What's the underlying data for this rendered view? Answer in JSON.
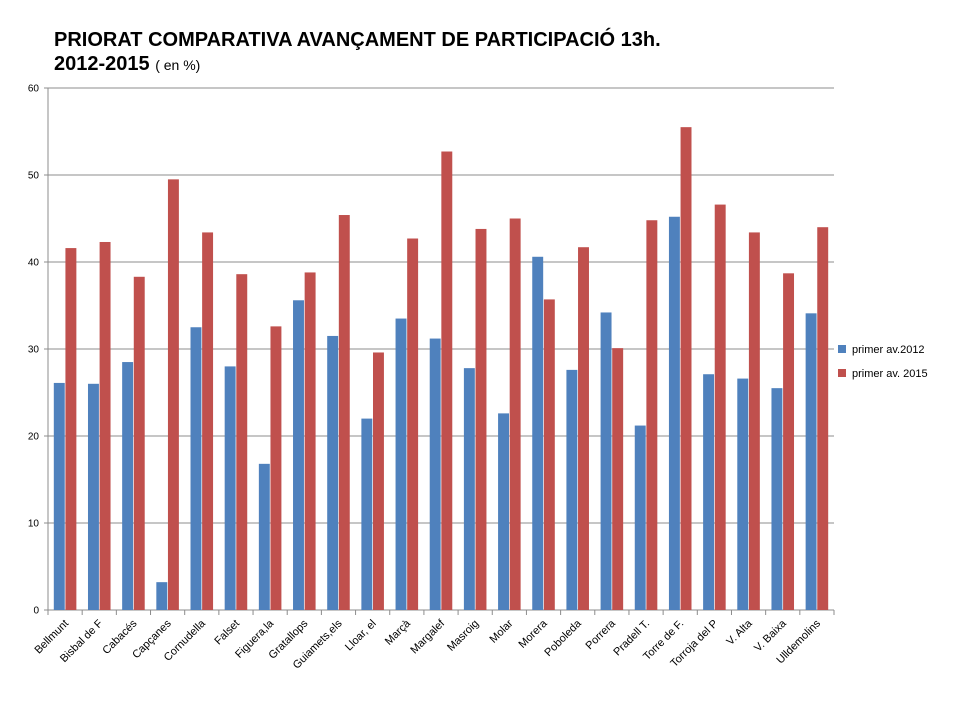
{
  "header": {
    "title_line1": "PRIORAT  COMPARATIVA AVANÇAMENT DE PARTICIPACIÓ 13h.",
    "title_line2": "2012-2015",
    "title_unit": "( en %)"
  },
  "chart_data": {
    "type": "bar",
    "title": "PRIORAT  COMPARATIVA AVANÇAMENT DE PARTICIPACIÓ 13h. 2012-2015 ( en %)",
    "xlabel": "",
    "ylabel": "",
    "ylim": [
      0,
      60
    ],
    "yticks": [
      0,
      10,
      20,
      30,
      40,
      50,
      60
    ],
    "grid": true,
    "legend_position": "right",
    "categories": [
      "Bellmunt",
      "Bisbal de F",
      "Cabacés",
      "Capçanes",
      "Cornudella",
      "Falset",
      "Figuera,la",
      "Gratallops",
      "Guiamets,els",
      "Lloar, el",
      "Marçà",
      "Margalef",
      "Masroig",
      "Molar",
      "Morera",
      "Poboleda",
      "Porrera",
      "Pradell T.",
      "Torre de F.",
      "Torroja del P",
      "V. Alta",
      "V. Baixa",
      "Ulldemolins"
    ],
    "series": [
      {
        "name": "primer av.2012",
        "color": "#4F81BD",
        "values": [
          26.1,
          26.0,
          28.5,
          3.2,
          32.5,
          28.0,
          16.8,
          35.6,
          31.5,
          22.0,
          33.5,
          31.2,
          27.8,
          22.6,
          40.6,
          27.6,
          34.2,
          21.2,
          45.2,
          27.1,
          26.6,
          25.5,
          34.1
        ]
      },
      {
        "name": "primer av. 2015",
        "color": "#C0504D",
        "values": [
          41.6,
          42.3,
          38.3,
          49.5,
          43.4,
          38.6,
          32.6,
          38.8,
          45.4,
          29.6,
          42.7,
          52.7,
          43.8,
          45.0,
          35.7,
          41.7,
          30.1,
          44.8,
          55.5,
          46.6,
          43.4,
          38.7,
          44.0
        ]
      }
    ]
  }
}
